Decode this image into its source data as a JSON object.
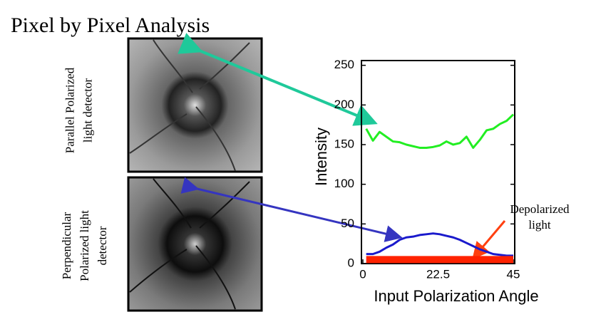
{
  "chart_data": {
    "type": "line",
    "title": "Pixel by Pixel Analysis",
    "image_labels": [
      [
        "Parallel Polarized",
        "light detector"
      ],
      [
        "Perpendicular",
        "Polarized light",
        "detector"
      ]
    ],
    "annotation": [
      "Depolarized",
      "light"
    ],
    "x_label": "Input Polarization Angle",
    "y_label": "Intensity",
    "x": [
      1,
      3,
      5,
      7,
      9,
      11,
      13,
      15,
      17,
      19,
      21,
      23,
      25,
      27,
      29,
      31,
      33,
      35,
      37,
      39,
      41,
      43,
      45
    ],
    "series": [
      {
        "color": "#22ee22",
        "values": [
          170,
          155,
          166,
          160,
          154,
          153,
          150,
          148,
          146,
          146,
          147,
          149,
          154,
          150,
          152,
          160,
          146,
          156,
          168,
          170,
          176,
          180,
          188
        ]
      },
      {
        "color": "#1a1acc",
        "values": [
          12,
          12,
          15,
          20,
          24,
          30,
          33,
          34,
          36,
          37,
          38,
          37,
          35,
          33,
          30,
          26,
          22,
          18,
          15,
          12,
          11,
          10,
          10
        ]
      },
      {
        "color": "#ff2200",
        "values": [
          5,
          5,
          5,
          5,
          5,
          5,
          5,
          5,
          5,
          5,
          5,
          5,
          5,
          5,
          5,
          5,
          5,
          5,
          5,
          5,
          5,
          5,
          5
        ]
      }
    ],
    "xlim": [
      0,
      45
    ],
    "xticks": [
      0,
      22.5,
      45
    ],
    "ylim": [
      0,
      256
    ],
    "yticks": [
      0,
      50,
      100,
      150,
      200,
      250
    ]
  }
}
